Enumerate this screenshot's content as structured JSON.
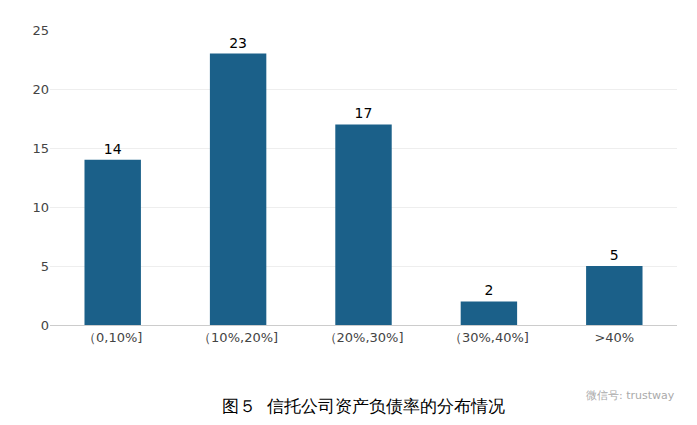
{
  "chart_data": {
    "type": "bar",
    "title": "图５  信托公司资产负债率的分布情况",
    "categories": [
      "（0,10%]",
      "（10%,20%]",
      "（20%,30%]",
      "（30%,40%]",
      ">40%"
    ],
    "values": [
      14,
      23,
      17,
      2,
      5
    ],
    "color": "#1B6089",
    "ylim": [
      0,
      25
    ],
    "yticks": [
      0,
      5,
      10,
      15,
      20,
      25
    ],
    "grid": true,
    "data_labels": true,
    "annotations": [
      "微信号: trustway"
    ]
  }
}
